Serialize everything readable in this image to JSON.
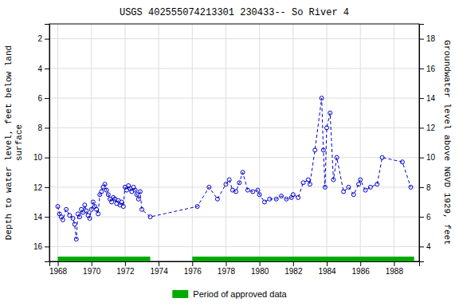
{
  "chart_data": {
    "type": "line",
    "title": "USGS 402555074213301 230433-- So River 4",
    "ylabel": "Depth to water level, feet below land\nsurface",
    "y2label": "Groundwater level above NGVD 1929, feet",
    "x": [
      1968.0,
      1968.1,
      1968.2,
      1968.3,
      1968.5,
      1968.7,
      1968.9,
      1969.0,
      1969.1,
      1969.2,
      1969.3,
      1969.4,
      1969.5,
      1969.6,
      1969.7,
      1969.8,
      1969.9,
      1970.0,
      1970.1,
      1970.2,
      1970.3,
      1970.4,
      1970.5,
      1970.6,
      1970.7,
      1970.8,
      1970.9,
      1971.0,
      1971.1,
      1971.2,
      1971.3,
      1971.4,
      1971.5,
      1971.6,
      1971.7,
      1971.8,
      1971.9,
      1972.0,
      1972.1,
      1972.2,
      1972.3,
      1972.4,
      1972.5,
      1972.6,
      1972.7,
      1972.8,
      1972.9,
      1973.0,
      1973.5,
      1976.3,
      1977.0,
      1977.5,
      1978.0,
      1978.2,
      1978.4,
      1978.6,
      1978.8,
      1979.0,
      1979.3,
      1979.6,
      1979.9,
      1980.0,
      1980.3,
      1980.6,
      1981.0,
      1981.3,
      1981.6,
      1981.9,
      1982.0,
      1982.3,
      1982.6,
      1982.9,
      1983.0,
      1983.3,
      1983.7,
      1983.8,
      1983.9,
      1984.0,
      1984.2,
      1984.4,
      1984.6,
      1985.0,
      1985.3,
      1985.6,
      1985.9,
      1986.0,
      1986.3,
      1986.6,
      1987.0,
      1987.3,
      1988.5,
      1989.0
    ],
    "series": [
      {
        "values": [
          13.3,
          13.8,
          14.0,
          14.2,
          13.5,
          13.9,
          14.1,
          14.5,
          15.5,
          13.8,
          14.0,
          13.5,
          13.7,
          13.2,
          13.6,
          13.9,
          14.1,
          13.5,
          13.0,
          13.3,
          13.5,
          13.8,
          12.5,
          12.3,
          12.0,
          11.8,
          12.2,
          12.5,
          12.8,
          13.0,
          12.7,
          12.8,
          13.1,
          12.9,
          13.2,
          13.0,
          13.3,
          12.0,
          12.2,
          11.9,
          12.1,
          12.3,
          12.0,
          12.2,
          12.5,
          12.8,
          12.3,
          13.5,
          14.0,
          13.3,
          12.0,
          12.8,
          11.8,
          11.5,
          12.2,
          12.3,
          11.7,
          11.0,
          12.2,
          12.3,
          12.2,
          12.5,
          13.0,
          12.8,
          12.8,
          12.6,
          12.8,
          12.7,
          12.5,
          12.7,
          11.7,
          11.5,
          11.8,
          9.5,
          6.0,
          9.5,
          12.0,
          8.0,
          7.0,
          11.5,
          10.0,
          12.3,
          12.0,
          12.5,
          11.8,
          11.5,
          12.2,
          12.0,
          11.8,
          10.0,
          10.3,
          12.0
        ],
        "color": "#0000cc",
        "marker": "circle",
        "line_style": "dashed"
      }
    ],
    "xlim": [
      1967.5,
      1989.5
    ],
    "xticks": [
      1968,
      1970,
      1972,
      1974,
      1976,
      1978,
      1980,
      1982,
      1984,
      1986,
      1988
    ],
    "ylim": [
      17,
      1
    ],
    "yticks": [
      2,
      4,
      6,
      8,
      10,
      12,
      14,
      16
    ],
    "y2lim": [
      3,
      19
    ],
    "y2ticks": [
      4,
      6,
      8,
      10,
      12,
      14,
      16,
      18
    ],
    "grid": true,
    "legend": "bottom",
    "periods": {
      "name": "Period of approved data",
      "color": "#00aa00",
      "ranges": [
        [
          1968.0,
          1973.5
        ],
        [
          1976.0,
          1989.2
        ]
      ]
    }
  }
}
